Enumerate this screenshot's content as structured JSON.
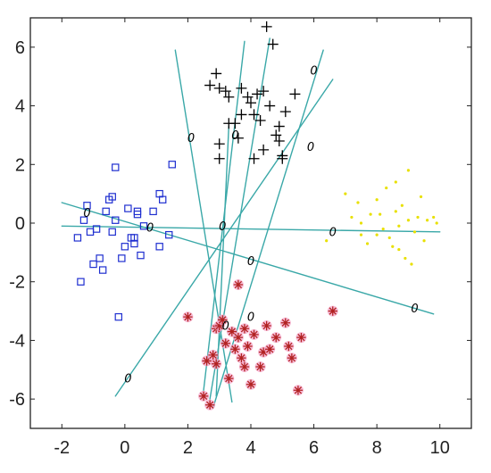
{
  "chart_data": {
    "type": "scatter",
    "title": "",
    "xlabel": "",
    "ylabel": "",
    "xlim": [
      -3,
      11
    ],
    "ylim": [
      -7,
      7
    ],
    "xticks": [
      -2,
      0,
      2,
      4,
      6,
      8,
      10
    ],
    "yticks": [
      6,
      4,
      2,
      0,
      -2,
      -4,
      -6
    ],
    "grid": false,
    "colors": {
      "square": "#1f2fd0",
      "plus": "#000000",
      "dot": "#e8e000",
      "star": "#b22222",
      "star_halo": "#f4a6c8",
      "boundary": "#3aa8a8"
    },
    "series": [
      {
        "marker": "square",
        "points": [
          [
            -1.5,
            -0.5
          ],
          [
            -1.4,
            -2.0
          ],
          [
            -1.3,
            0.1
          ],
          [
            -1.2,
            0.6
          ],
          [
            -1.1,
            -0.3
          ],
          [
            -1.0,
            -1.4
          ],
          [
            -0.9,
            -0.2
          ],
          [
            -0.8,
            -1.2
          ],
          [
            -0.7,
            -1.6
          ],
          [
            -0.6,
            0.4
          ],
          [
            -0.5,
            0.8
          ],
          [
            -0.4,
            -0.3
          ],
          [
            -0.4,
            0.9
          ],
          [
            -0.3,
            0.1
          ],
          [
            -0.3,
            1.9
          ],
          [
            -0.2,
            -3.2
          ],
          [
            -0.1,
            -1.2
          ],
          [
            0.0,
            -0.8
          ],
          [
            0.1,
            0.5
          ],
          [
            0.2,
            -0.5
          ],
          [
            0.3,
            -0.7
          ],
          [
            0.4,
            0.4
          ],
          [
            0.4,
            0.3
          ],
          [
            0.5,
            -1.1
          ],
          [
            0.6,
            -0.1
          ],
          [
            0.9,
            0.4
          ],
          [
            1.1,
            -0.8
          ],
          [
            1.1,
            1.0
          ],
          [
            1.2,
            0.8
          ],
          [
            1.4,
            -0.4
          ],
          [
            1.5,
            2.0
          ],
          [
            0.3,
            -0.5
          ]
        ]
      },
      {
        "marker": "plus",
        "points": [
          [
            4.5,
            6.7
          ],
          [
            4.7,
            6.1
          ],
          [
            2.9,
            5.1
          ],
          [
            2.7,
            4.7
          ],
          [
            3.0,
            4.6
          ],
          [
            3.2,
            4.5
          ],
          [
            3.3,
            4.3
          ],
          [
            3.7,
            4.6
          ],
          [
            3.9,
            4.3
          ],
          [
            4.2,
            4.4
          ],
          [
            4.4,
            4.5
          ],
          [
            5.4,
            4.4
          ],
          [
            4.0,
            4.1
          ],
          [
            4.6,
            4.0
          ],
          [
            3.7,
            3.7
          ],
          [
            4.1,
            3.7
          ],
          [
            4.3,
            3.5
          ],
          [
            5.1,
            3.8
          ],
          [
            3.3,
            3.4
          ],
          [
            3.5,
            3.4
          ],
          [
            4.9,
            3.3
          ],
          [
            4.8,
            3.0
          ],
          [
            3.6,
            2.9
          ],
          [
            4.9,
            2.8
          ],
          [
            3.0,
            2.7
          ],
          [
            4.4,
            2.5
          ],
          [
            5.0,
            2.3
          ],
          [
            4.1,
            2.2
          ],
          [
            5.0,
            2.2
          ],
          [
            3.0,
            2.2
          ]
        ]
      },
      {
        "marker": "dot",
        "points": [
          [
            7.0,
            1.0
          ],
          [
            7.2,
            0.2
          ],
          [
            7.4,
            0.7
          ],
          [
            7.5,
            0.0
          ],
          [
            7.5,
            -0.4
          ],
          [
            7.7,
            -0.7
          ],
          [
            7.8,
            0.3
          ],
          [
            8.0,
            0.8
          ],
          [
            8.0,
            -0.4
          ],
          [
            8.1,
            0.3
          ],
          [
            8.2,
            -0.2
          ],
          [
            8.3,
            1.2
          ],
          [
            8.4,
            -0.5
          ],
          [
            8.5,
            -0.8
          ],
          [
            8.6,
            1.4
          ],
          [
            8.6,
            0.4
          ],
          [
            8.7,
            -0.1
          ],
          [
            8.7,
            -0.9
          ],
          [
            8.8,
            0.6
          ],
          [
            8.9,
            -1.2
          ],
          [
            9.0,
            1.8
          ],
          [
            9.0,
            0.1
          ],
          [
            9.2,
            -0.3
          ],
          [
            9.3,
            0.2
          ],
          [
            9.4,
            0.9
          ],
          [
            9.5,
            -0.6
          ],
          [
            9.6,
            0.1
          ],
          [
            9.8,
            0.2
          ],
          [
            9.9,
            0.0
          ],
          [
            9.1,
            -1.4
          ],
          [
            6.4,
            -0.6
          ]
        ]
      },
      {
        "marker": "star",
        "points": [
          [
            2.0,
            -3.2
          ],
          [
            2.5,
            -5.9
          ],
          [
            2.6,
            -4.7
          ],
          [
            2.7,
            -6.2
          ],
          [
            2.8,
            -4.5
          ],
          [
            2.9,
            -4.8
          ],
          [
            2.9,
            -3.6
          ],
          [
            3.0,
            -3.5
          ],
          [
            3.1,
            -3.3
          ],
          [
            3.2,
            -4.1
          ],
          [
            3.3,
            -5.3
          ],
          [
            3.4,
            -3.7
          ],
          [
            3.5,
            -4.3
          ],
          [
            3.6,
            -2.1
          ],
          [
            3.6,
            -3.9
          ],
          [
            3.7,
            -4.6
          ],
          [
            3.8,
            -3.6
          ],
          [
            3.8,
            -4.9
          ],
          [
            3.9,
            -4.2
          ],
          [
            4.0,
            -5.5
          ],
          [
            4.1,
            -3.8
          ],
          [
            4.3,
            -4.9
          ],
          [
            4.4,
            -4.4
          ],
          [
            4.5,
            -3.5
          ],
          [
            4.6,
            -4.3
          ],
          [
            4.8,
            -3.9
          ],
          [
            5.1,
            -3.4
          ],
          [
            5.2,
            -4.2
          ],
          [
            5.3,
            -4.6
          ],
          [
            5.5,
            -5.7
          ],
          [
            6.6,
            -3.0
          ],
          [
            5.6,
            -3.9
          ]
        ]
      }
    ],
    "boundaries": [
      {
        "x": [
          -2.0,
          10.0
        ],
        "y": [
          -0.1,
          -0.3
        ]
      },
      {
        "x": [
          -2.0,
          9.8
        ],
        "y": [
          0.7,
          -3.1
        ]
      },
      {
        "x": [
          1.6,
          3.4
        ],
        "y": [
          5.9,
          -6.1
        ]
      },
      {
        "x": [
          3.3,
          2.9
        ],
        "y": [
          3.3,
          -5.9
        ]
      },
      {
        "x": [
          3.8,
          2.5
        ],
        "y": [
          6.2,
          -5.7
        ]
      },
      {
        "x": [
          4.6,
          2.7
        ],
        "y": [
          6.3,
          -6.0
        ]
      },
      {
        "x": [
          6.3,
          2.8
        ],
        "y": [
          5.9,
          -6.3
        ]
      },
      {
        "x": [
          6.6,
          -0.3
        ],
        "y": [
          4.9,
          -5.9
        ]
      }
    ],
    "annotations": [
      {
        "text": "0",
        "x": -1.2,
        "y": 0.35
      },
      {
        "text": "0",
        "x": 0.8,
        "y": -0.15
      },
      {
        "text": "0",
        "x": 6.6,
        "y": -0.3
      },
      {
        "text": "0",
        "x": 4.0,
        "y": -1.3
      },
      {
        "text": "0",
        "x": 9.2,
        "y": -2.9
      },
      {
        "text": "0",
        "x": 2.1,
        "y": 2.9
      },
      {
        "text": "0",
        "x": 3.5,
        "y": 3.0
      },
      {
        "text": "0",
        "x": 3.1,
        "y": -0.1
      },
      {
        "text": "0",
        "x": 6.0,
        "y": 5.2
      },
      {
        "text": "0",
        "x": 5.9,
        "y": 2.6
      },
      {
        "text": "0",
        "x": 3.2,
        "y": -3.5
      },
      {
        "text": "0",
        "x": 4.0,
        "y": -3.2
      },
      {
        "text": "0",
        "x": 0.1,
        "y": -5.3
      }
    ]
  }
}
